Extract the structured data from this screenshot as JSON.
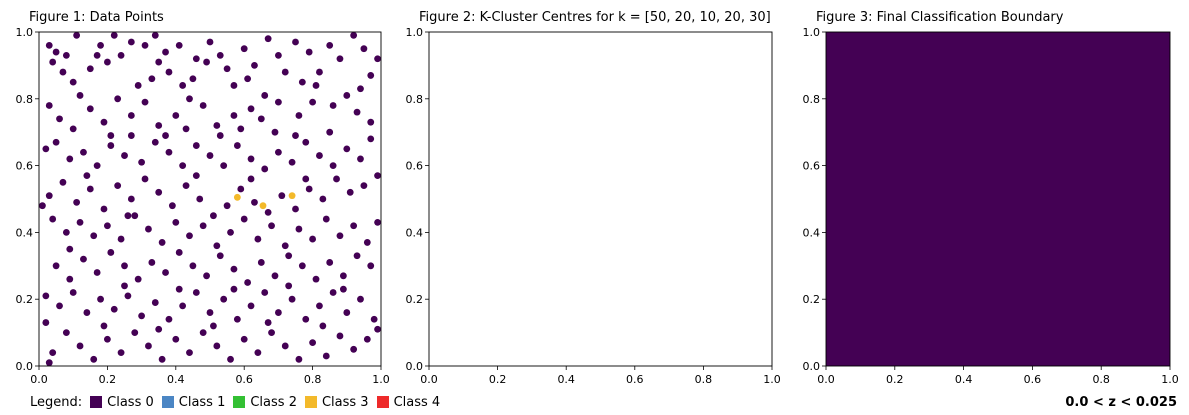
{
  "colors": {
    "class0": "#440154",
    "class1": "#4b86c4",
    "class2": "#33c033",
    "class3": "#f3b92a",
    "class4": "#ee2a2a",
    "boundary_fill": "#440154"
  },
  "legend": {
    "title": "Legend:",
    "items": [
      {
        "label": "Class 0",
        "color": "#440154"
      },
      {
        "label": "Class 1",
        "color": "#4b86c4"
      },
      {
        "label": "Class 2",
        "color": "#33c033"
      },
      {
        "label": "Class 3",
        "color": "#f3b92a"
      },
      {
        "label": "Class 4",
        "color": "#ee2a2a"
      }
    ]
  },
  "zrange_text": "0.0 < z < 0.025",
  "chart_data": [
    {
      "type": "scatter",
      "title": "Figure 1: Data Points",
      "xlim": [
        0,
        1
      ],
      "ylim": [
        0,
        1
      ],
      "xticks": [
        "0.0",
        "0.2",
        "0.4",
        "0.6",
        "0.8",
        "1.0"
      ],
      "yticks": [
        "0.0",
        "0.2",
        "0.4",
        "0.6",
        "0.8",
        "1.0"
      ],
      "grid": false,
      "series": [
        {
          "class": "Class 0",
          "color": "#440154",
          "points": [
            [
              0.03,
              0.96
            ],
            [
              0.05,
              0.94
            ],
            [
              0.08,
              0.93
            ],
            [
              0.04,
              0.91
            ],
            [
              0.07,
              0.88
            ],
            [
              0.1,
              0.85
            ],
            [
              0.12,
              0.81
            ],
            [
              0.15,
              0.89
            ],
            [
              0.18,
              0.96
            ],
            [
              0.2,
              0.91
            ],
            [
              0.22,
              0.99
            ],
            [
              0.24,
              0.93
            ],
            [
              0.27,
              0.97
            ],
            [
              0.31,
              0.96
            ],
            [
              0.34,
              0.99
            ],
            [
              0.35,
              0.91
            ],
            [
              0.37,
              0.94
            ],
            [
              0.41,
              0.96
            ],
            [
              0.38,
              0.88
            ],
            [
              0.42,
              0.84
            ],
            [
              0.46,
              0.92
            ],
            [
              0.5,
              0.97
            ],
            [
              0.53,
              0.93
            ],
            [
              0.55,
              0.89
            ],
            [
              0.57,
              0.84
            ],
            [
              0.6,
              0.95
            ],
            [
              0.63,
              0.9
            ],
            [
              0.67,
              0.98
            ],
            [
              0.7,
              0.93
            ],
            [
              0.72,
              0.88
            ],
            [
              0.75,
              0.97
            ],
            [
              0.79,
              0.94
            ],
            [
              0.82,
              0.88
            ],
            [
              0.85,
              0.96
            ],
            [
              0.88,
              0.92
            ],
            [
              0.92,
              0.99
            ],
            [
              0.95,
              0.95
            ],
            [
              0.97,
              0.87
            ],
            [
              0.99,
              0.92
            ],
            [
              0.94,
              0.83
            ],
            [
              0.9,
              0.81
            ],
            [
              0.86,
              0.78
            ],
            [
              0.8,
              0.79
            ],
            [
              0.76,
              0.75
            ],
            [
              0.7,
              0.79
            ],
            [
              0.66,
              0.81
            ],
            [
              0.62,
              0.77
            ],
            [
              0.57,
              0.75
            ],
            [
              0.52,
              0.72
            ],
            [
              0.48,
              0.78
            ],
            [
              0.44,
              0.8
            ],
            [
              0.4,
              0.75
            ],
            [
              0.35,
              0.72
            ],
            [
              0.31,
              0.79
            ],
            [
              0.27,
              0.75
            ],
            [
              0.23,
              0.8
            ],
            [
              0.19,
              0.73
            ],
            [
              0.15,
              0.77
            ],
            [
              0.1,
              0.71
            ],
            [
              0.06,
              0.74
            ],
            [
              0.03,
              0.78
            ],
            [
              0.02,
              0.65
            ],
            [
              0.05,
              0.67
            ],
            [
              0.09,
              0.62
            ],
            [
              0.13,
              0.64
            ],
            [
              0.17,
              0.6
            ],
            [
              0.21,
              0.66
            ],
            [
              0.25,
              0.63
            ],
            [
              0.3,
              0.61
            ],
            [
              0.34,
              0.67
            ],
            [
              0.38,
              0.64
            ],
            [
              0.42,
              0.6
            ],
            [
              0.46,
              0.66
            ],
            [
              0.5,
              0.63
            ],
            [
              0.54,
              0.6
            ],
            [
              0.58,
              0.66
            ],
            [
              0.62,
              0.62
            ],
            [
              0.66,
              0.59
            ],
            [
              0.7,
              0.64
            ],
            [
              0.74,
              0.61
            ],
            [
              0.78,
              0.67
            ],
            [
              0.82,
              0.63
            ],
            [
              0.86,
              0.6
            ],
            [
              0.9,
              0.65
            ],
            [
              0.94,
              0.62
            ],
            [
              0.97,
              0.68
            ],
            [
              0.99,
              0.57
            ],
            [
              0.95,
              0.54
            ],
            [
              0.91,
              0.52
            ],
            [
              0.87,
              0.56
            ],
            [
              0.83,
              0.5
            ],
            [
              0.79,
              0.53
            ],
            [
              0.75,
              0.47
            ],
            [
              0.71,
              0.51
            ],
            [
              0.67,
              0.46
            ],
            [
              0.63,
              0.49
            ],
            [
              0.59,
              0.53
            ],
            [
              0.55,
              0.48
            ],
            [
              0.51,
              0.45
            ],
            [
              0.47,
              0.5
            ],
            [
              0.43,
              0.54
            ],
            [
              0.39,
              0.48
            ],
            [
              0.35,
              0.52
            ],
            [
              0.31,
              0.56
            ],
            [
              0.27,
              0.5
            ],
            [
              0.23,
              0.54
            ],
            [
              0.19,
              0.47
            ],
            [
              0.15,
              0.53
            ],
            [
              0.11,
              0.49
            ],
            [
              0.07,
              0.55
            ],
            [
              0.03,
              0.51
            ],
            [
              0.01,
              0.48
            ],
            [
              0.04,
              0.44
            ],
            [
              0.08,
              0.4
            ],
            [
              0.12,
              0.43
            ],
            [
              0.16,
              0.39
            ],
            [
              0.2,
              0.42
            ],
            [
              0.24,
              0.38
            ],
            [
              0.28,
              0.45
            ],
            [
              0.32,
              0.41
            ],
            [
              0.36,
              0.37
            ],
            [
              0.4,
              0.43
            ],
            [
              0.44,
              0.39
            ],
            [
              0.48,
              0.42
            ],
            [
              0.52,
              0.36
            ],
            [
              0.56,
              0.4
            ],
            [
              0.6,
              0.44
            ],
            [
              0.64,
              0.38
            ],
            [
              0.68,
              0.42
            ],
            [
              0.72,
              0.36
            ],
            [
              0.76,
              0.41
            ],
            [
              0.8,
              0.38
            ],
            [
              0.84,
              0.44
            ],
            [
              0.88,
              0.39
            ],
            [
              0.92,
              0.42
            ],
            [
              0.96,
              0.37
            ],
            [
              0.99,
              0.43
            ],
            [
              0.97,
              0.3
            ],
            [
              0.93,
              0.33
            ],
            [
              0.89,
              0.27
            ],
            [
              0.85,
              0.31
            ],
            [
              0.81,
              0.26
            ],
            [
              0.77,
              0.3
            ],
            [
              0.73,
              0.33
            ],
            [
              0.69,
              0.27
            ],
            [
              0.65,
              0.31
            ],
            [
              0.61,
              0.25
            ],
            [
              0.57,
              0.29
            ],
            [
              0.53,
              0.33
            ],
            [
              0.49,
              0.27
            ],
            [
              0.45,
              0.3
            ],
            [
              0.41,
              0.34
            ],
            [
              0.37,
              0.28
            ],
            [
              0.33,
              0.31
            ],
            [
              0.29,
              0.26
            ],
            [
              0.25,
              0.3
            ],
            [
              0.21,
              0.34
            ],
            [
              0.17,
              0.28
            ],
            [
              0.13,
              0.32
            ],
            [
              0.09,
              0.26
            ],
            [
              0.05,
              0.3
            ],
            [
              0.02,
              0.21
            ],
            [
              0.06,
              0.18
            ],
            [
              0.1,
              0.22
            ],
            [
              0.14,
              0.16
            ],
            [
              0.18,
              0.2
            ],
            [
              0.22,
              0.17
            ],
            [
              0.26,
              0.21
            ],
            [
              0.3,
              0.15
            ],
            [
              0.34,
              0.19
            ],
            [
              0.38,
              0.14
            ],
            [
              0.42,
              0.18
            ],
            [
              0.46,
              0.22
            ],
            [
              0.5,
              0.16
            ],
            [
              0.54,
              0.2
            ],
            [
              0.58,
              0.14
            ],
            [
              0.62,
              0.18
            ],
            [
              0.66,
              0.22
            ],
            [
              0.7,
              0.16
            ],
            [
              0.74,
              0.2
            ],
            [
              0.78,
              0.14
            ],
            [
              0.82,
              0.18
            ],
            [
              0.86,
              0.22
            ],
            [
              0.9,
              0.16
            ],
            [
              0.94,
              0.2
            ],
            [
              0.98,
              0.14
            ],
            [
              0.96,
              0.08
            ],
            [
              0.92,
              0.05
            ],
            [
              0.88,
              0.09
            ],
            [
              0.84,
              0.03
            ],
            [
              0.8,
              0.07
            ],
            [
              0.76,
              0.02
            ],
            [
              0.72,
              0.06
            ],
            [
              0.68,
              0.1
            ],
            [
              0.64,
              0.04
            ],
            [
              0.6,
              0.08
            ],
            [
              0.56,
              0.02
            ],
            [
              0.52,
              0.06
            ],
            [
              0.48,
              0.1
            ],
            [
              0.44,
              0.04
            ],
            [
              0.4,
              0.08
            ],
            [
              0.36,
              0.02
            ],
            [
              0.32,
              0.06
            ],
            [
              0.28,
              0.1
            ],
            [
              0.24,
              0.04
            ],
            [
              0.2,
              0.08
            ],
            [
              0.16,
              0.02
            ],
            [
              0.12,
              0.06
            ],
            [
              0.08,
              0.1
            ],
            [
              0.04,
              0.04
            ],
            [
              0.02,
              0.13
            ],
            [
              0.03,
              0.01
            ],
            [
              0.19,
              0.12
            ],
            [
              0.35,
              0.11
            ],
            [
              0.51,
              0.12
            ],
            [
              0.67,
              0.13
            ],
            [
              0.83,
              0.12
            ],
            [
              0.99,
              0.11
            ],
            [
              0.26,
              0.45
            ],
            [
              0.14,
              0.57
            ],
            [
              0.46,
              0.57
            ],
            [
              0.62,
              0.56
            ],
            [
              0.78,
              0.56
            ],
            [
              0.21,
              0.69
            ],
            [
              0.37,
              0.69
            ],
            [
              0.53,
              0.69
            ],
            [
              0.69,
              0.7
            ],
            [
              0.85,
              0.7
            ],
            [
              0.29,
              0.84
            ],
            [
              0.45,
              0.86
            ],
            [
              0.61,
              0.86
            ],
            [
              0.77,
              0.85
            ],
            [
              0.93,
              0.76
            ],
            [
              0.09,
              0.35
            ],
            [
              0.25,
              0.24
            ],
            [
              0.41,
              0.23
            ],
            [
              0.57,
              0.23
            ],
            [
              0.73,
              0.24
            ],
            [
              0.89,
              0.23
            ],
            [
              0.33,
              0.86
            ],
            [
              0.17,
              0.93
            ],
            [
              0.49,
              0.91
            ],
            [
              0.65,
              0.74
            ],
            [
              0.81,
              0.84
            ],
            [
              0.97,
              0.73
            ],
            [
              0.11,
              0.99
            ],
            [
              0.27,
              0.69
            ],
            [
              0.43,
              0.71
            ],
            [
              0.59,
              0.71
            ],
            [
              0.75,
              0.69
            ]
          ]
        },
        {
          "class": "Class 3",
          "color": "#f3b92a",
          "points": [
            [
              0.58,
              0.505
            ],
            [
              0.655,
              0.48
            ],
            [
              0.74,
              0.51
            ]
          ]
        }
      ]
    },
    {
      "type": "scatter",
      "title": "Figure 2: K-Cluster Centres for k = [50, 20, 10, 20, 30]",
      "xlim": [
        0,
        1
      ],
      "ylim": [
        0,
        1
      ],
      "xticks": [
        "0.0",
        "0.2",
        "0.4",
        "0.6",
        "0.8",
        "1.0"
      ],
      "yticks": [
        "0.0",
        "0.2",
        "0.4",
        "0.6",
        "0.8",
        "1.0"
      ],
      "grid": false,
      "series": []
    },
    {
      "type": "heatmap",
      "title": "Figure 3: Final Classification Boundary",
      "xlim": [
        0,
        1
      ],
      "ylim": [
        0,
        1
      ],
      "xticks": [
        "0.0",
        "0.2",
        "0.4",
        "0.6",
        "0.8",
        "1.0"
      ],
      "yticks": [
        "0.0",
        "0.2",
        "0.4",
        "0.6",
        "0.8",
        "1.0"
      ],
      "grid": false,
      "fill_class": "Class 0",
      "fill_color": "#440154"
    }
  ]
}
